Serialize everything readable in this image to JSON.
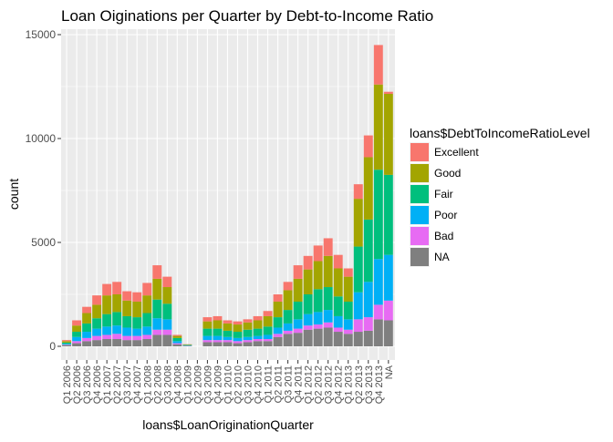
{
  "chart_data": {
    "type": "bar",
    "stacked": true,
    "title": "Loan Oiginations per Quarter by Debt-to-Income Ratio",
    "xlabel": "loans$LoanOriginationQuarter",
    "ylabel": "count",
    "ylim": [
      0,
      15500
    ],
    "yticks": [
      0,
      5000,
      10000,
      15000
    ],
    "yticklabels": [
      "0",
      "5000",
      "10000",
      "15000"
    ],
    "grid": true,
    "legend_position": "right",
    "legend_title": "loans$DebtToIncomeRatioLevel",
    "categories": [
      "Q1 2006",
      "Q2 2006",
      "Q3 2006",
      "Q4 2006",
      "Q1 2007",
      "Q2 2007",
      "Q3 2007",
      "Q4 2007",
      "Q1 2008",
      "Q2 2008",
      "Q3 2008",
      "Q4 2008",
      "Q1 2009",
      "Q2 2009",
      "Q3 2009",
      "Q4 2009",
      "Q1 2010",
      "Q2 2010",
      "Q3 2010",
      "Q4 2010",
      "Q1 2011",
      "Q2 2011",
      "Q3 2011",
      "Q4 2011",
      "Q1 2012",
      "Q2 2012",
      "Q3 2012",
      "Q4 2012",
      "Q1 2013",
      "Q2 2013",
      "Q3 2013",
      "Q4 2013",
      "NA"
    ],
    "series": [
      {
        "name": "NA",
        "color": "#7f7f7f",
        "values": [
          60,
          150,
          250,
          300,
          350,
          350,
          300,
          300,
          350,
          550,
          550,
          100,
          20,
          0,
          200,
          200,
          200,
          150,
          200,
          250,
          250,
          450,
          600,
          650,
          800,
          850,
          900,
          700,
          600,
          700,
          750,
          1300,
          1250
        ]
      },
      {
        "name": "Bad",
        "color": "#e76bf3",
        "values": [
          20,
          100,
          150,
          200,
          200,
          250,
          200,
          200,
          200,
          250,
          250,
          50,
          10,
          0,
          100,
          100,
          100,
          100,
          100,
          100,
          100,
          150,
          150,
          200,
          200,
          200,
          250,
          200,
          200,
          600,
          650,
          700,
          950
        ]
      },
      {
        "name": "Poor",
        "color": "#00b0f6",
        "values": [
          40,
          200,
          300,
          350,
          400,
          400,
          400,
          350,
          400,
          550,
          500,
          100,
          20,
          0,
          200,
          200,
          150,
          150,
          150,
          150,
          200,
          300,
          350,
          450,
          550,
          600,
          600,
          550,
          500,
          1300,
          1700,
          2200,
          2200
        ]
      },
      {
        "name": "Fair",
        "color": "#00bf7d",
        "values": [
          60,
          250,
          400,
          500,
          600,
          650,
          550,
          550,
          650,
          900,
          750,
          150,
          20,
          0,
          350,
          350,
          300,
          300,
          350,
          350,
          400,
          500,
          650,
          850,
          950,
          1100,
          1100,
          950,
          850,
          2200,
          3000,
          4300,
          3850
        ]
      },
      {
        "name": "Good",
        "color": "#a3a500",
        "values": [
          70,
          300,
          500,
          650,
          900,
          850,
          750,
          750,
          850,
          1000,
          800,
          100,
          20,
          0,
          350,
          400,
          350,
          350,
          350,
          400,
          500,
          750,
          950,
          1100,
          1200,
          1350,
          1500,
          1350,
          1200,
          2300,
          3000,
          4100,
          3900
        ]
      },
      {
        "name": "Excellent",
        "color": "#f8766d",
        "values": [
          50,
          250,
          300,
          450,
          550,
          600,
          450,
          450,
          600,
          650,
          500,
          50,
          10,
          0,
          200,
          200,
          150,
          150,
          150,
          200,
          250,
          350,
          400,
          650,
          650,
          750,
          850,
          650,
          400,
          700,
          1050,
          1900,
          100
        ]
      }
    ]
  }
}
